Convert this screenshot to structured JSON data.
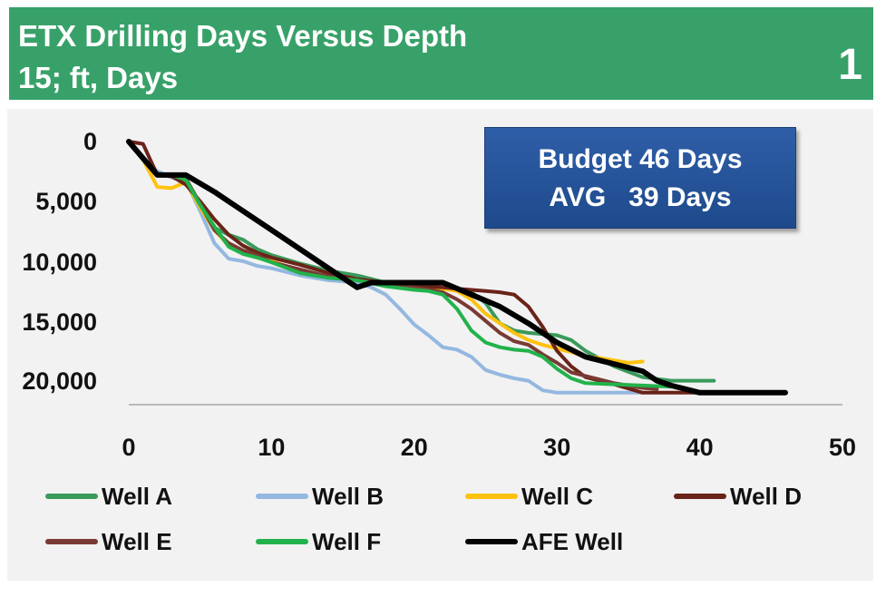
{
  "header": {
    "title_line1": "ETX Drilling Days Versus Depth",
    "title_line2": "15; ft, Days",
    "slide_number": "1",
    "background_color": "#38a169"
  },
  "budget_box": {
    "line1": "Budget 46 Days",
    "line2": "AVG   39 Days"
  },
  "chart_data": {
    "type": "line",
    "title": "ETX Drilling Days Versus Depth",
    "xlabel": "",
    "ylabel": "",
    "xlim": [
      0,
      50
    ],
    "ylim": [
      0,
      22000
    ],
    "y_inverted": true,
    "x_ticks": [
      "0",
      "10",
      "20",
      "30",
      "40",
      "50"
    ],
    "y_ticks": [
      "0",
      "5,000",
      "10,000",
      "15,000",
      "20,000"
    ],
    "y_tick_values": [
      0,
      5000,
      10000,
      15000,
      20000
    ],
    "grid": false,
    "legend_position": "bottom",
    "series": [
      {
        "name": "Well A",
        "color": "#3a9a5b",
        "width": 4,
        "x": [
          0,
          1,
          2,
          3,
          4,
          5,
          6,
          7,
          8,
          9,
          10,
          12,
          14,
          16,
          18,
          20,
          22,
          24,
          25,
          26,
          27,
          28,
          30,
          31,
          32,
          34,
          36,
          38,
          41
        ],
        "y": [
          0,
          1500,
          2500,
          3000,
          3400,
          5500,
          7200,
          7800,
          8200,
          9000,
          9500,
          10200,
          10800,
          11200,
          11800,
          12000,
          12300,
          12600,
          13500,
          15200,
          15800,
          16000,
          16200,
          16600,
          17500,
          18800,
          19700,
          20000,
          20000
        ]
      },
      {
        "name": "Well B",
        "color": "#94b8e0",
        "width": 4,
        "x": [
          0,
          1,
          2,
          3,
          4,
          5,
          6,
          7,
          8,
          9,
          10,
          12,
          14,
          16,
          17,
          18,
          19,
          20,
          21,
          22,
          23,
          24,
          25,
          26,
          27,
          28,
          29,
          30,
          32,
          34,
          36
        ],
        "y": [
          0,
          1500,
          2500,
          3000,
          3300,
          5800,
          8500,
          9800,
          10000,
          10400,
          10600,
          11200,
          11600,
          11800,
          12200,
          12800,
          14000,
          15300,
          16200,
          17200,
          17400,
          18000,
          19100,
          19500,
          19800,
          20000,
          20800,
          21000,
          21000,
          21000,
          21000
        ]
      },
      {
        "name": "Well C",
        "color": "#ffc20e",
        "width": 4,
        "x": [
          0,
          1,
          2,
          3,
          4,
          5,
          6,
          7,
          8,
          9,
          10,
          12,
          14,
          16,
          18,
          20,
          22,
          23,
          24,
          25,
          26,
          27,
          28,
          29,
          30,
          31,
          32,
          33,
          34,
          35,
          36
        ],
        "y": [
          0,
          1500,
          3800,
          3900,
          3400,
          5500,
          7400,
          8700,
          9300,
          9700,
          10000,
          10800,
          11300,
          11600,
          11800,
          12000,
          12300,
          12500,
          13200,
          14400,
          15200,
          16000,
          16600,
          17000,
          17300,
          17600,
          18000,
          18100,
          18300,
          18500,
          18400
        ]
      },
      {
        "name": "Well D",
        "color": "#6a2318",
        "width": 4,
        "x": [
          0,
          1,
          2,
          3,
          4,
          5,
          6,
          7,
          8,
          9,
          10,
          12,
          14,
          16,
          18,
          20,
          22,
          24,
          25,
          26,
          27,
          28,
          29,
          30,
          31,
          32,
          34,
          36,
          38,
          40,
          42
        ],
        "y": [
          0,
          200,
          2800,
          2900,
          3600,
          5000,
          6500,
          7800,
          8700,
          9300,
          9700,
          10300,
          11000,
          11500,
          11800,
          12100,
          12200,
          12400,
          12500,
          12600,
          12800,
          13800,
          15500,
          17500,
          18800,
          19700,
          20300,
          21000,
          21000,
          21000,
          21000
        ]
      },
      {
        "name": "Well E",
        "color": "#7a3a34",
        "width": 4,
        "x": [
          0,
          1,
          2,
          3,
          4,
          5,
          6,
          7,
          8,
          9,
          10,
          12,
          14,
          16,
          18,
          20,
          22,
          23,
          24,
          25,
          26,
          27,
          28,
          29,
          30,
          31,
          32,
          33,
          34,
          35,
          36,
          37
        ],
        "y": [
          0,
          1500,
          2700,
          2800,
          3100,
          5200,
          7400,
          8500,
          9100,
          9500,
          10100,
          10700,
          11300,
          11600,
          11900,
          12200,
          12600,
          13200,
          14000,
          15000,
          16000,
          16700,
          17000,
          17800,
          18500,
          19300,
          19600,
          19900,
          20200,
          20400,
          20600,
          20700
        ]
      },
      {
        "name": "Well F",
        "color": "#22b24c",
        "width": 4,
        "x": [
          0,
          1,
          2,
          3,
          4,
          5,
          6,
          7,
          8,
          9,
          10,
          12,
          14,
          16,
          18,
          20,
          21,
          22,
          23,
          24,
          25,
          26,
          27,
          28,
          29,
          30,
          31,
          32,
          34,
          36,
          38
        ],
        "y": [
          0,
          1500,
          2700,
          2800,
          3200,
          5300,
          7100,
          8800,
          9400,
          9700,
          10100,
          11000,
          11400,
          11600,
          12100,
          12400,
          12500,
          12800,
          14000,
          15800,
          16800,
          17200,
          17400,
          17500,
          18000,
          19000,
          19800,
          20200,
          20300,
          20400,
          20500
        ]
      },
      {
        "name": "AFE Well",
        "color": "#000000",
        "width": 6,
        "x": [
          0,
          2,
          4,
          6,
          8,
          10,
          12,
          14,
          16,
          17,
          18,
          20,
          22,
          24,
          26,
          28,
          30,
          32,
          34,
          36,
          37,
          38,
          40,
          42,
          44,
          46
        ],
        "y": [
          0,
          2800,
          2800,
          4200,
          5800,
          7400,
          9000,
          10600,
          12200,
          11800,
          11800,
          11800,
          11800,
          12800,
          13800,
          15200,
          16800,
          18000,
          18600,
          19200,
          20000,
          20400,
          21000,
          21000,
          21000,
          21000
        ]
      }
    ]
  }
}
